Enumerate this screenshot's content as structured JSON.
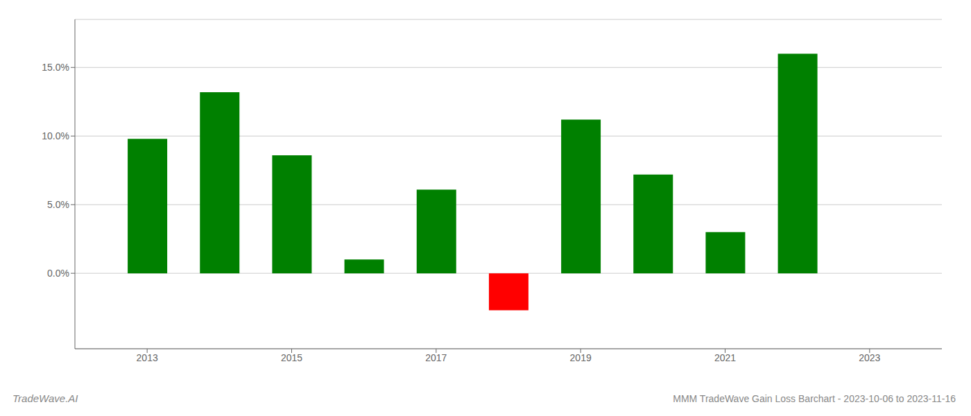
{
  "chart_data": {
    "type": "bar",
    "title": "MMM TradeWave Gain Loss Barchart - 2023-10-06 to 2023-11-16",
    "annotations": [
      "TradeWave.AI"
    ],
    "x": [
      2013,
      2014,
      2015,
      2016,
      2017,
      2018,
      2019,
      2020,
      2021,
      2022
    ],
    "values": [
      0.098,
      0.132,
      0.086,
      0.01,
      0.061,
      -0.027,
      0.112,
      0.072,
      0.03,
      0.16
    ],
    "colors": [
      "#008000",
      "#008000",
      "#008000",
      "#008000",
      "#008000",
      "#ff0000",
      "#008000",
      "#008000",
      "#008000",
      "#008000"
    ],
    "xlim": [
      2012,
      2024
    ],
    "xticks": [
      2013,
      2015,
      2017,
      2019,
      2021,
      2023
    ],
    "ylim": [
      -0.055,
      0.185
    ],
    "yticks": [
      {
        "value": 0.0,
        "label": "0.0%"
      },
      {
        "value": 0.05,
        "label": "5.0%"
      },
      {
        "value": 0.1,
        "label": "10.0%"
      },
      {
        "value": 0.15,
        "label": "15.0%"
      }
    ],
    "grid": true
  }
}
